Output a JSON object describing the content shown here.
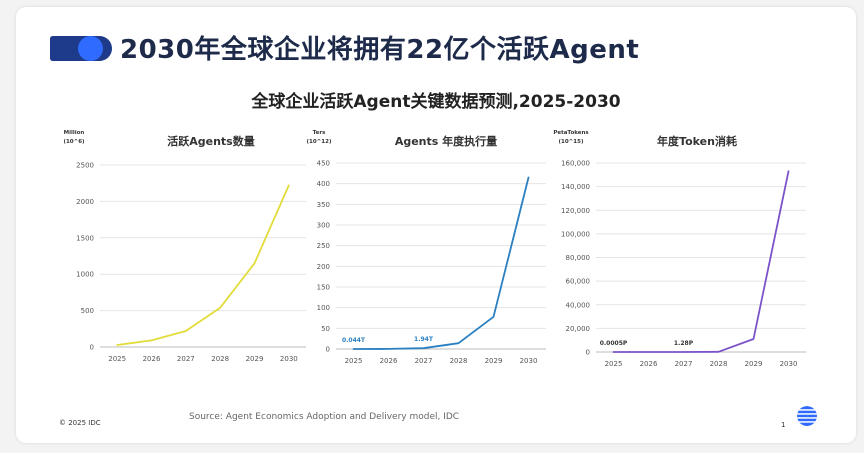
{
  "header": {
    "title": "2030年全球企业将拥有22亿个活跃Agent",
    "subtitle": "全球企业活跃Agent关键数据预测,2025-2030"
  },
  "footer": {
    "copyright": "© 2025 IDC",
    "source": "Source: Agent Economics Adoption and Delivery model, IDC",
    "page": "1"
  },
  "colors": {
    "title": "#1e2a4a",
    "accent_dark": "#1e3a8a",
    "accent_blue": "#2f6bff"
  },
  "chart_data": [
    {
      "type": "line",
      "title": "活跃Agents数量",
      "unit_label": [
        "Million",
        "(10^6)"
      ],
      "x": [
        "2025",
        "2026",
        "2027",
        "2028",
        "2029",
        "2030"
      ],
      "series": [
        {
          "values": [
            28,
            90,
            220,
            540,
            1150,
            2220
          ],
          "color": "#e2dc3a"
        }
      ],
      "yticks": [
        "0",
        "500",
        "1000",
        "1500",
        "2000",
        "2500"
      ],
      "ylim": [
        0,
        2500
      ],
      "annotations": [],
      "grid": true
    },
    {
      "type": "line",
      "title": "Agents 年度执行量",
      "unit_label": [
        "Ters",
        "(10^12)"
      ],
      "x": [
        "2025",
        "2026",
        "2027",
        "2028",
        "2029",
        "2030"
      ],
      "series": [
        {
          "values": [
            0.044,
            0.3,
            1.94,
            14,
            78,
            415
          ],
          "color": "#2a7fc0"
        }
      ],
      "yticks": [
        "0",
        "50",
        "100",
        "150",
        "200",
        "250",
        "300",
        "350",
        "400",
        "450"
      ],
      "ylim": [
        0,
        450
      ],
      "annotations": [
        {
          "text": "0.044T",
          "x": "2025",
          "y": 0.044
        },
        {
          "text": "1.94T",
          "x": "2027",
          "y": 1.94
        }
      ],
      "annotation_color": "#2a7fc0",
      "grid": true
    },
    {
      "type": "line",
      "title": "年度Token消耗",
      "unit_label": [
        "PetaTokens",
        "(10^15)"
      ],
      "x": [
        "2025",
        "2026",
        "2027",
        "2028",
        "2029",
        "2030"
      ],
      "series": [
        {
          "values": [
            0.0005,
            0.05,
            1.28,
            200,
            11000,
            153000
          ],
          "color": "#7b52c8"
        }
      ],
      "yticks": [
        "0",
        "20,000",
        "40,000",
        "60,000",
        "80,000",
        "100,000",
        "120,000",
        "140,000",
        "160,000"
      ],
      "ylim": [
        0,
        160000
      ],
      "annotations": [
        {
          "text": "0.0005P",
          "x": "2025",
          "y": 0.0005
        },
        {
          "text": "1.28P",
          "x": "2027",
          "y": 1.28
        }
      ],
      "annotation_color": "#333333",
      "grid": true
    }
  ]
}
